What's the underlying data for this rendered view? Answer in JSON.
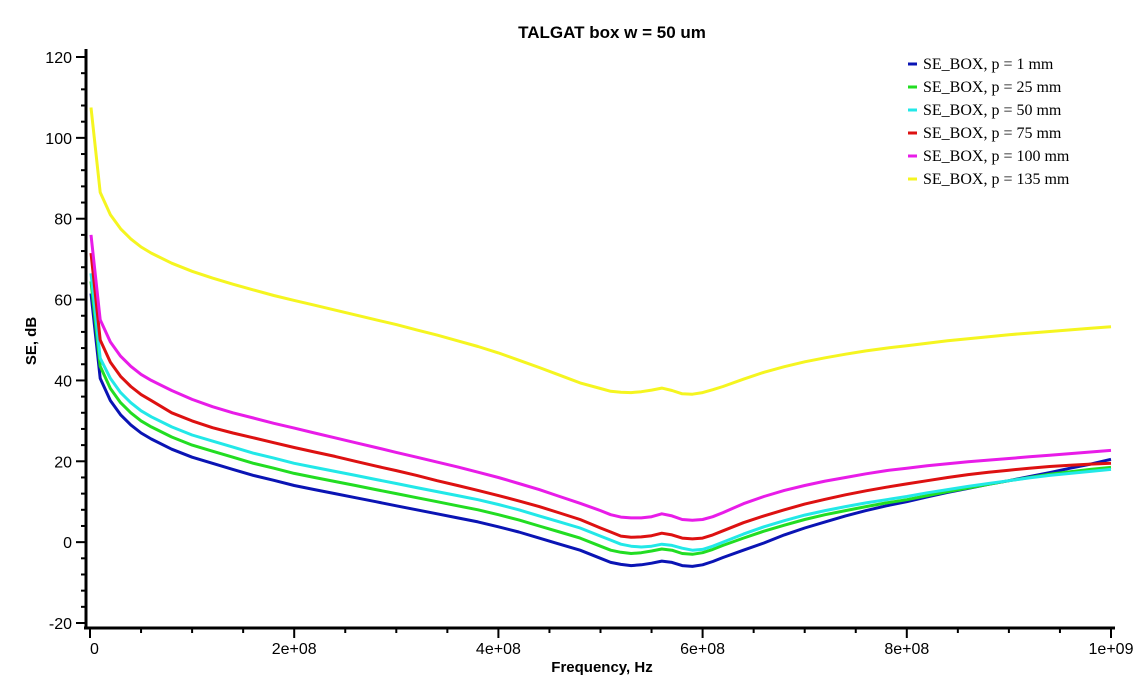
{
  "chart_data": {
    "type": "line",
    "title": "TALGAT box w = 50 um",
    "xlabel": "Frequency, Hz",
    "ylabel": "SE, dB",
    "xlim": [
      0,
      1000000000
    ],
    "ylim": [
      -20,
      120
    ],
    "x_ticks": [
      {
        "value": 0,
        "label": "0"
      },
      {
        "value": 200000000,
        "label": "2e+08"
      },
      {
        "value": 400000000,
        "label": "4e+08"
      },
      {
        "value": 600000000,
        "label": "6e+08"
      },
      {
        "value": 800000000,
        "label": "8e+08"
      },
      {
        "value": 1000000000,
        "label": "1e+09"
      }
    ],
    "y_ticks": [
      {
        "value": -20,
        "label": "-20"
      },
      {
        "value": 0,
        "label": "0"
      },
      {
        "value": 20,
        "label": "20"
      },
      {
        "value": 40,
        "label": "40"
      },
      {
        "value": 60,
        "label": "60"
      },
      {
        "value": 80,
        "label": "80"
      },
      {
        "value": 100,
        "label": "100"
      },
      {
        "value": 120,
        "label": "120"
      }
    ],
    "grid": false,
    "legend_position": "top-right",
    "x": [
      1000000,
      10000000,
      20000000,
      30000000,
      40000000,
      50000000,
      60000000,
      80000000,
      100000000,
      120000000,
      140000000,
      160000000,
      180000000,
      200000000,
      220000000,
      240000000,
      260000000,
      280000000,
      300000000,
      320000000,
      340000000,
      360000000,
      380000000,
      400000000,
      420000000,
      440000000,
      460000000,
      480000000,
      500000000,
      510000000,
      520000000,
      530000000,
      540000000,
      550000000,
      560000000,
      570000000,
      580000000,
      590000000,
      600000000,
      610000000,
      620000000,
      640000000,
      660000000,
      680000000,
      700000000,
      720000000,
      740000000,
      760000000,
      780000000,
      800000000,
      820000000,
      840000000,
      860000000,
      880000000,
      900000000,
      920000000,
      940000000,
      960000000,
      980000000,
      1000000000
    ],
    "series": [
      {
        "name": "SE_BOX, p = 1 mm",
        "color": "#0a14b4",
        "values": [
          61.5,
          40.5,
          35.0,
          31.5,
          29.0,
          27.0,
          25.5,
          23.0,
          21.0,
          19.5,
          18.0,
          16.5,
          15.3,
          14.0,
          13.0,
          12.0,
          11.0,
          10.0,
          9.0,
          8.0,
          7.0,
          6.0,
          5.0,
          3.8,
          2.5,
          1.0,
          -0.5,
          -2.0,
          -4.0,
          -5.0,
          -5.5,
          -5.8,
          -5.6,
          -5.2,
          -4.7,
          -5.0,
          -5.8,
          -6.0,
          -5.6,
          -4.8,
          -3.8,
          -2.0,
          -0.2,
          1.8,
          3.5,
          5.0,
          6.5,
          7.8,
          9.0,
          10.0,
          11.2,
          12.3,
          13.3,
          14.3,
          15.2,
          16.2,
          17.2,
          18.3,
          19.3,
          20.5
        ]
      },
      {
        "name": "SE_BOX, p = 25 mm",
        "color": "#22dd22",
        "values": [
          64.5,
          43.5,
          38.0,
          34.5,
          32.0,
          30.0,
          28.5,
          26.0,
          24.0,
          22.5,
          21.0,
          19.5,
          18.3,
          17.0,
          16.0,
          15.0,
          14.0,
          13.0,
          12.0,
          11.0,
          10.0,
          9.0,
          8.0,
          6.8,
          5.5,
          4.0,
          2.5,
          1.0,
          -1.0,
          -2.0,
          -2.5,
          -2.8,
          -2.6,
          -2.2,
          -1.7,
          -2.0,
          -2.8,
          -3.0,
          -2.6,
          -1.8,
          -0.8,
          1.0,
          2.7,
          4.2,
          5.6,
          6.8,
          7.8,
          8.8,
          9.7,
          10.5,
          11.5,
          12.5,
          13.4,
          14.3,
          15.2,
          16.0,
          16.8,
          17.4,
          18.0,
          18.5
        ]
      },
      {
        "name": "SE_BOX, p = 50 mm",
        "color": "#22e8e8",
        "values": [
          66.5,
          45.5,
          40.5,
          37.0,
          34.5,
          32.5,
          31.0,
          28.5,
          26.5,
          25.0,
          23.5,
          22.0,
          20.8,
          19.5,
          18.5,
          17.5,
          16.5,
          15.5,
          14.5,
          13.5,
          12.5,
          11.5,
          10.5,
          9.3,
          8.0,
          6.5,
          5.0,
          3.5,
          1.5,
          0.5,
          -0.5,
          -1.0,
          -1.2,
          -1.0,
          -0.5,
          -0.8,
          -1.5,
          -2.0,
          -1.8,
          -1.0,
          0.0,
          2.0,
          3.8,
          5.3,
          6.7,
          7.8,
          8.8,
          9.7,
          10.5,
          11.3,
          12.2,
          13.0,
          13.8,
          14.5,
          15.2,
          15.9,
          16.5,
          17.0,
          17.5,
          18.0
        ]
      },
      {
        "name": "SE_BOX, p = 75 mm",
        "color": "#dd1111",
        "values": [
          71.5,
          50.0,
          44.5,
          41.0,
          38.5,
          36.5,
          35.0,
          32.0,
          30.0,
          28.3,
          27.0,
          25.8,
          24.6,
          23.4,
          22.3,
          21.2,
          20.0,
          18.8,
          17.7,
          16.5,
          15.2,
          14.0,
          12.8,
          11.5,
          10.2,
          8.8,
          7.2,
          5.6,
          3.5,
          2.5,
          1.5,
          1.2,
          1.3,
          1.6,
          2.2,
          1.8,
          1.0,
          0.8,
          1.0,
          1.8,
          2.8,
          4.8,
          6.5,
          8.0,
          9.4,
          10.6,
          11.7,
          12.7,
          13.6,
          14.4,
          15.2,
          16.0,
          16.7,
          17.3,
          17.8,
          18.3,
          18.7,
          19.0,
          19.3,
          19.5
        ]
      },
      {
        "name": "SE_BOX, p = 100 mm",
        "color": "#e81ce8",
        "values": [
          76.0,
          55.0,
          49.5,
          46.0,
          43.5,
          41.5,
          40.0,
          37.5,
          35.3,
          33.5,
          32.0,
          30.7,
          29.4,
          28.2,
          27.0,
          25.8,
          24.6,
          23.4,
          22.2,
          21.0,
          19.8,
          18.6,
          17.3,
          16.0,
          14.5,
          13.0,
          11.3,
          9.6,
          7.8,
          6.8,
          6.2,
          6.0,
          6.0,
          6.3,
          7.0,
          6.5,
          5.6,
          5.4,
          5.6,
          6.3,
          7.3,
          9.5,
          11.3,
          12.8,
          14.0,
          15.1,
          16.0,
          16.9,
          17.7,
          18.3,
          18.9,
          19.4,
          19.9,
          20.3,
          20.7,
          21.1,
          21.5,
          21.9,
          22.3,
          22.7
        ]
      },
      {
        "name": "SE_BOX, p = 135 mm",
        "color": "#f5f520",
        "values": [
          107.5,
          86.5,
          81.0,
          77.5,
          75.0,
          73.0,
          71.5,
          69.0,
          67.0,
          65.3,
          63.8,
          62.4,
          61.0,
          59.8,
          58.6,
          57.4,
          56.2,
          55.0,
          53.8,
          52.5,
          51.2,
          49.8,
          48.4,
          46.8,
          45.0,
          43.2,
          41.3,
          39.4,
          38.0,
          37.3,
          37.1,
          37.0,
          37.2,
          37.6,
          38.1,
          37.5,
          36.7,
          36.6,
          37.0,
          37.7,
          38.5,
          40.3,
          42.0,
          43.4,
          44.6,
          45.6,
          46.5,
          47.3,
          48.0,
          48.6,
          49.2,
          49.8,
          50.3,
          50.8,
          51.3,
          51.7,
          52.1,
          52.5,
          52.9,
          53.3
        ]
      }
    ]
  }
}
